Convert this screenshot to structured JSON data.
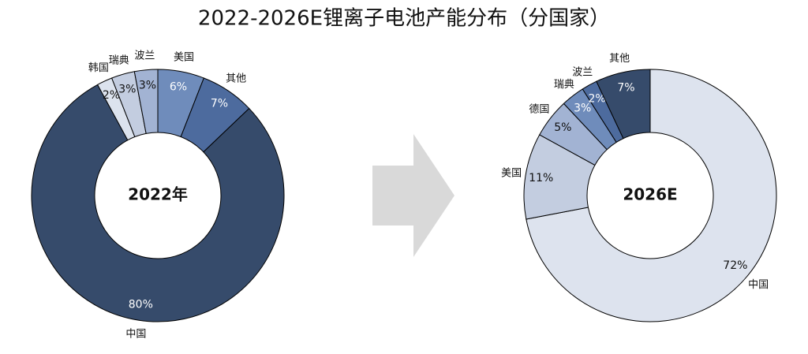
{
  "title": "2022-2026E锂离子电池产能分布（分国家）",
  "chart_data": [
    {
      "type": "pie",
      "center_label": "2022年",
      "categories": [
        "美国",
        "其他",
        "中国",
        "韩国",
        "瑞典",
        "波兰"
      ],
      "values": [
        6,
        7,
        80,
        2,
        3,
        3
      ],
      "value_labels": [
        "6%",
        "7%",
        "80%",
        "2%",
        "3%",
        "3%"
      ],
      "colors": [
        "#6f8cbb",
        "#4d6b9e",
        "#364b6b",
        "#dce3ee",
        "#c3cde0",
        "#a2b3d3"
      ]
    },
    {
      "type": "pie",
      "center_label": "2026E",
      "categories": [
        "中国",
        "美国",
        "德国",
        "瑞典",
        "波兰",
        "其他"
      ],
      "values": [
        72,
        11,
        5,
        3,
        2,
        7
      ],
      "value_labels": [
        "72%",
        "11%",
        "5%",
        "3%",
        "2%",
        "7%"
      ],
      "colors": [
        "#dde3ee",
        "#c3cde0",
        "#a2b3d3",
        "#6f8cbb",
        "#4d6b9e",
        "#364b6b"
      ]
    }
  ]
}
